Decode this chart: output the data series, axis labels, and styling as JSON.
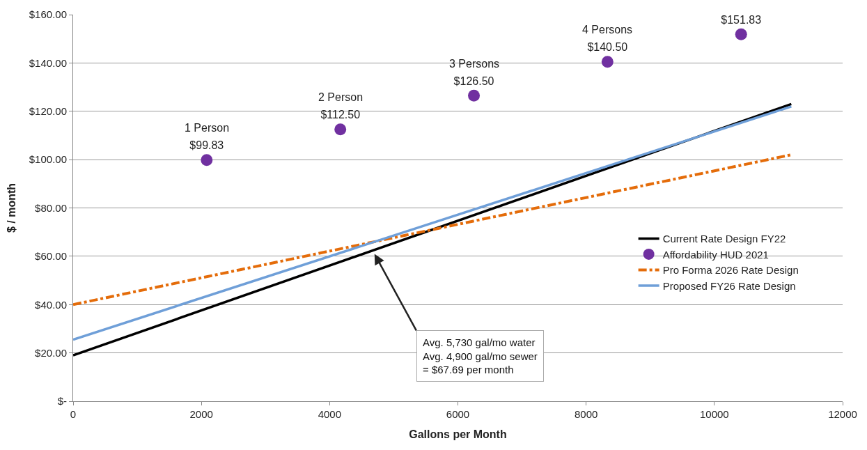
{
  "chart_data": {
    "type": "line",
    "xlabel": "Gallons per Month",
    "ylabel": "$ / month",
    "xlim": [
      0,
      12000
    ],
    "xticks": [
      0,
      2000,
      4000,
      6000,
      8000,
      10000,
      12000
    ],
    "ylim": [
      0,
      160
    ],
    "yticks": [
      {
        "value": 0,
        "label": "$-"
      },
      {
        "value": 20,
        "label": "$20.00"
      },
      {
        "value": 40,
        "label": "$40.00"
      },
      {
        "value": 60,
        "label": "$60.00"
      },
      {
        "value": 80,
        "label": "$80.00"
      },
      {
        "value": 100,
        "label": "$100.00"
      },
      {
        "value": 120,
        "label": "$120.00"
      },
      {
        "value": 140,
        "label": "$140.00"
      },
      {
        "value": 160,
        "label": "$160.00"
      }
    ],
    "grid": "y",
    "legend": "right",
    "series": [
      {
        "name": "Current Rate Design FY22",
        "color": "#000000",
        "line_style": "solid",
        "marker": "none",
        "x": [
          0,
          11200
        ],
        "values": [
          19,
          123
        ]
      },
      {
        "name": "Affordability HUD 2021",
        "type": "scatter",
        "color": "#7030a0",
        "marker": "circle",
        "x": [
          2083,
          4167,
          6250,
          8333,
          10417
        ],
        "values": [
          99.83,
          112.5,
          126.5,
          140.5,
          151.83
        ],
        "value_labels": [
          "$99.83",
          "$112.50",
          "$126.50",
          "$140.50",
          "$151.83"
        ]
      },
      {
        "name": "Pro Forma 2026 Rate Design",
        "color": "#e46c0a",
        "line_style": "dashed",
        "marker": "none",
        "x": [
          0,
          11200
        ],
        "values": [
          40,
          102
        ]
      },
      {
        "name": "Proposed FY26 Rate Design",
        "color": "#6f9fd8",
        "line_style": "solid",
        "marker": "none",
        "x": [
          0,
          11200
        ],
        "values": [
          25.5,
          122
        ]
      }
    ],
    "annotations": [
      {
        "text": "1 Person",
        "x": 2083,
        "y": 99.83
      },
      {
        "text": "2 Person",
        "x": 4167,
        "y": 112.5
      },
      {
        "text": "3 Persons",
        "x": 6250,
        "y": 126.5
      },
      {
        "text": "4 Persons",
        "x": 8333,
        "y": 140.5
      },
      {
        "text": "Avg. 5,730 gal/mo water\nAvg. 4,900 gal/mo sewer\n= $67.69 per month",
        "x": 4700,
        "y": 61
      }
    ]
  }
}
